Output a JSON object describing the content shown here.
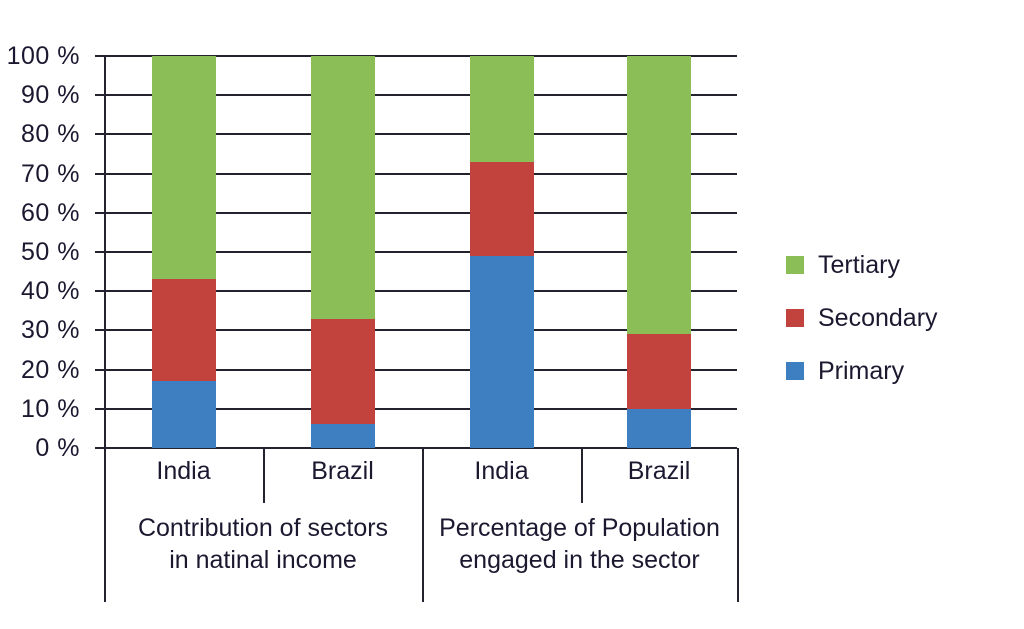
{
  "chart_data": {
    "type": "bar",
    "subtype": "stacked-100-percent",
    "title": "",
    "grid": true,
    "y_axis": {
      "min": 0,
      "max": 100,
      "tick_step": 10,
      "tick_labels": [
        "0 %",
        "10 %",
        "20 %",
        "30 %",
        "40 %",
        "50 %",
        "60 %",
        "70 %",
        "80 %",
        "90 %",
        "100 %"
      ]
    },
    "groups": [
      {
        "label_lines": [
          "Contribution of sectors",
          "in natinal income"
        ],
        "categories": [
          "India",
          "Brazil"
        ]
      },
      {
        "label_lines": [
          "Percentage of Population",
          "engaged in the sector"
        ],
        "categories": [
          "India",
          "Brazil"
        ]
      }
    ],
    "bar_order": [
      "Group1-India",
      "Group1-Brazil",
      "Group2-India",
      "Group2-Brazil"
    ],
    "series": [
      {
        "name": "Primary",
        "color": "#3E7FC1",
        "values": [
          17,
          6,
          49,
          10
        ]
      },
      {
        "name": "Secondary",
        "color": "#C2423E",
        "values": [
          26,
          27,
          24,
          19
        ]
      },
      {
        "name": "Tertiary",
        "color": "#8CBE58",
        "values": [
          57,
          67,
          27,
          71
        ]
      }
    ],
    "legend": {
      "position": "right",
      "items": [
        "Tertiary",
        "Secondary",
        "Primary"
      ]
    }
  },
  "colors": {
    "line": "#23222e",
    "text": "#1d1830",
    "background": "#ffffff"
  }
}
